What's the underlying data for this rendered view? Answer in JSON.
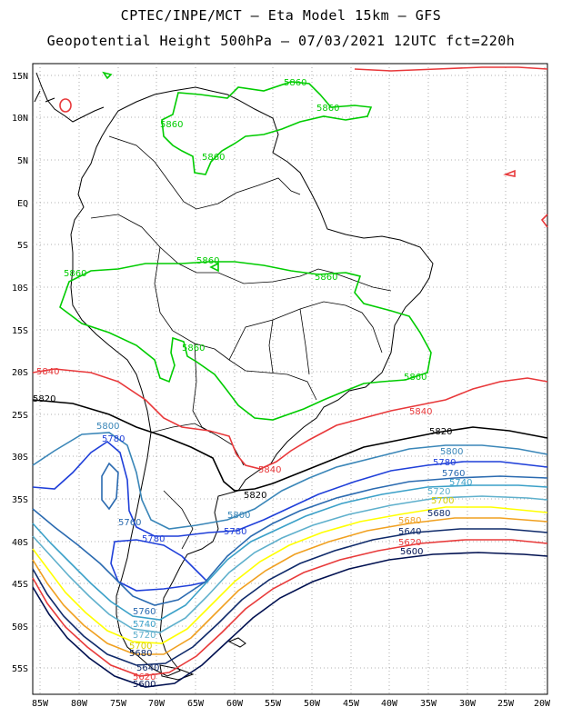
{
  "title_line1": "CPTEC/INPE/MCT –  Eta Model 15km – GFS",
  "title_line2": "Geopotential Height 500hPa – 07/03/2021 12UTC fct=220h",
  "axes": {
    "lat_ticks": [
      "15N",
      "10N",
      "5N",
      "EQ",
      "5S",
      "10S",
      "15S",
      "20S",
      "25S",
      "30S",
      "35S",
      "40S",
      "45S",
      "50S",
      "55S"
    ],
    "lon_ticks": [
      "85W",
      "80W",
      "75W",
      "70W",
      "65W",
      "60W",
      "55W",
      "50W",
      "45W",
      "40W",
      "35W",
      "30W",
      "25W",
      "20W"
    ]
  },
  "colors": {
    "c5860": "#00cc00",
    "c5840": "#e8383a",
    "c5820": "#000000",
    "c5800": "#3a86b8",
    "c5780": "#1f3fd9",
    "c5760": "#2a6ab0",
    "c5740": "#3aa0c8",
    "c5720": "#5fb0cc",
    "c5700": "#ffff00",
    "c5680": "#f0a020",
    "c5640": "#0f2a6a",
    "c5620": "#e83a3a",
    "c5600": "#001050"
  },
  "labels": {
    "l5860a": "5860",
    "l5860b": "5860",
    "l5860c": "5860",
    "l5860d": "5860",
    "l5860e": "5860",
    "l5860f": "5860",
    "l5860g": "5860",
    "l5860h": "5860",
    "l5840a": "5840",
    "l5840b": "5840",
    "l5840c": "5840",
    "l5820a": "5820",
    "l5820b": "5820",
    "l5820c": "5820",
    "l5800a": "5800",
    "l5800b": "5800",
    "l5800c": "5800",
    "l5780a": "5780",
    "l5780b": "5780",
    "l5780c": "5780",
    "l5780d": "5780",
    "l5760a": "5760",
    "l5760b": "5760",
    "l5760c": "5760",
    "l5740a": "5740",
    "l5740b": "5740",
    "l5720a": "5720",
    "l5720b": "5720",
    "l5700a": "5700",
    "l5700b": "5700",
    "l5680a": "5680",
    "l5680b": "5680",
    "l5680c": "5680",
    "l5640a": "5640",
    "l5640b": "5640",
    "l5620a": "5620",
    "l5620b": "5620",
    "l5600a": "5600",
    "l5600b": "5600"
  }
}
